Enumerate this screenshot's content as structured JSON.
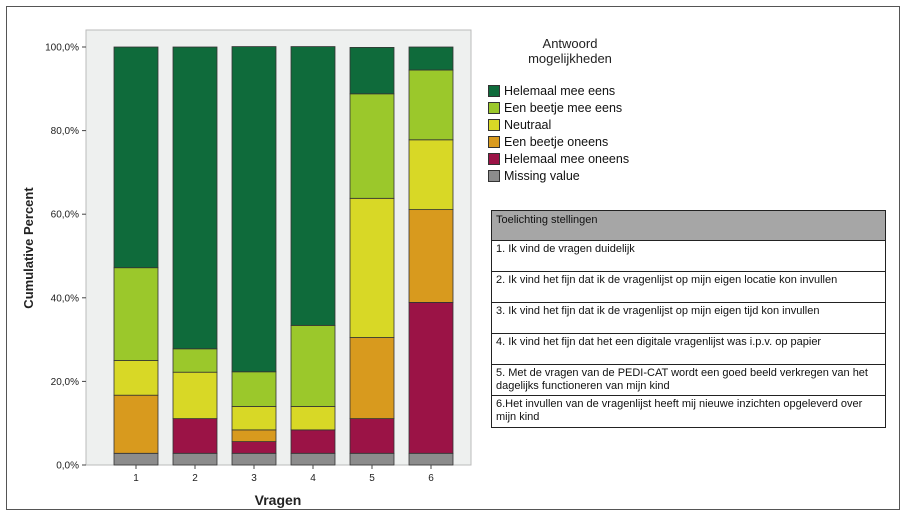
{
  "chart_data": {
    "type": "bar",
    "stacked": true,
    "xlabel": "Vragen",
    "ylabel": "Cumulative Percent",
    "categories": [
      "1",
      "2",
      "3",
      "4",
      "5",
      "6"
    ],
    "ylim": [
      0,
      100
    ],
    "yticks": [
      "0,0%",
      "20,0%",
      "40,0%",
      "60,0%",
      "80,0%",
      "100,0%"
    ],
    "series": [
      {
        "name": "Missing value",
        "color": "#8c8c8c",
        "values": [
          2.8,
          2.8,
          2.8,
          2.8,
          2.8,
          2.8
        ]
      },
      {
        "name": "Helemaal mee oneens",
        "color": "#9b1346",
        "values": [
          0,
          8.3,
          2.8,
          5.6,
          8.3,
          36.1
        ]
      },
      {
        "name": "Een beetje oneens",
        "color": "#d89a1e",
        "values": [
          13.9,
          0,
          2.8,
          0,
          19.4,
          22.2
        ]
      },
      {
        "name": "Neutraal",
        "color": "#d8d826",
        "values": [
          8.3,
          11.1,
          5.6,
          5.6,
          33.3,
          16.7
        ]
      },
      {
        "name": "Een beetje mee eens",
        "color": "#9bc82b",
        "values": [
          22.2,
          5.6,
          8.3,
          19.4,
          25.0,
          16.7
        ]
      },
      {
        "name": "Helemaal mee eens",
        "color": "#0f6b3b",
        "values": [
          52.8,
          72.2,
          77.8,
          66.7,
          11.1,
          5.5
        ]
      }
    ],
    "legend": {
      "title_line1": "Antwoord",
      "title_line2": "mogelijkheden",
      "placement": "right",
      "order": [
        "Helemaal mee eens",
        "Een beetje mee eens",
        "Neutraal",
        "Een beetje oneens",
        "Helemaal mee oneens",
        "Missing value"
      ]
    },
    "plot_background": "#eef0ef"
  },
  "notes": {
    "header": "Toelichting stellingen",
    "items": [
      "1. Ik vind de vragen duidelijk",
      "2. Ik vind het fijn dat ik de vragenlijst op mijn eigen locatie kon invullen",
      "3. Ik vind het fijn dat ik de vragenlijst op mijn eigen tijd kon invullen",
      "4. Ik vind het fijn dat het een digitale vragenlijst was i.p.v. op papier",
      "5. Met de vragen van de PEDI-CAT wordt een goed beeld verkregen van het dagelijks functioneren van mijn kind",
      "6.Het invullen van de vragenlijst heeft mij nieuwe inzichten opgeleverd over mijn kind"
    ]
  }
}
